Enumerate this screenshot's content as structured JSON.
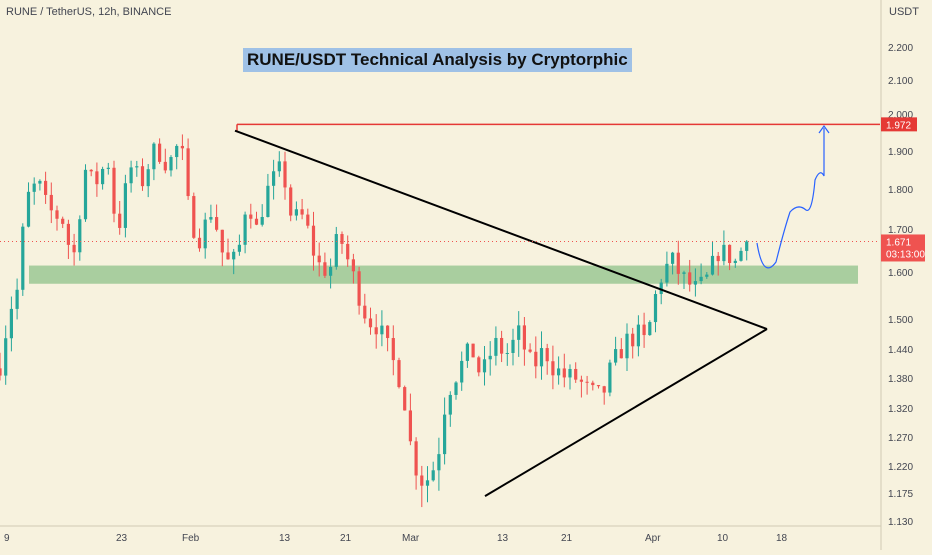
{
  "header": {
    "symbol": "RUNE / TetherUS, 12h, BINANCE"
  },
  "title": "RUNE/USDT Technical Analysis by Cryptorphic",
  "price_axis": {
    "unit": "USDT",
    "current_price": "1.671",
    "countdown": "03:13:00",
    "resistance_tag": "1.972"
  },
  "chart_data": {
    "type": "candlestick",
    "title": "RUNE/USDT Technical Analysis by Cryptorphic",
    "symbol": "RUNE / TetherUS, 12h, BINANCE",
    "ylabel": "USDT",
    "yticks": [
      "2.200",
      "2.100",
      "2.000",
      "1.900",
      "1.800",
      "1.700",
      "1.600",
      "1.500",
      "1.440",
      "1.380",
      "1.320",
      "1.270",
      "1.220",
      "1.175",
      "1.130"
    ],
    "xticks": [
      "9",
      "23",
      "Feb",
      "13",
      "21",
      "Mar",
      "13",
      "21",
      "Apr",
      "10",
      "18"
    ],
    "colors": {
      "up": "#26a69a",
      "down": "#ef5350",
      "resistance": "#e53935",
      "support_zone": "#8fc18a",
      "triangle": "#000000",
      "projection": "#2962ff"
    },
    "resistance_level": 1.972,
    "support_zone": [
      1.575,
      1.615
    ],
    "last_price": 1.671,
    "triangle": {
      "upper_line": [
        [
          "Feb 6",
          1.955
        ],
        [
          "Apr 16",
          1.48
        ]
      ],
      "lower_line": [
        [
          "Mar 12",
          1.17
        ],
        [
          "Apr 16",
          1.48
        ]
      ]
    },
    "projection_path": [
      1.671,
      1.6,
      1.72,
      1.85,
      1.97
    ]
  }
}
